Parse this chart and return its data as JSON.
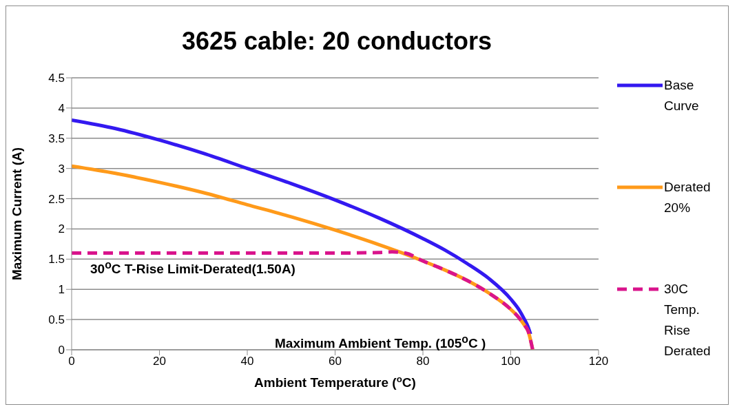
{
  "chart_data": {
    "type": "line",
    "title": "3625 cable: 20 conductors",
    "xlabel": "Ambient Temperature ($^{o}$C)",
    "ylabel": "Maximum Current (A)",
    "xlim": [
      0,
      120
    ],
    "xticks": [
      0,
      20,
      40,
      60,
      80,
      100,
      120
    ],
    "ylim": [
      0,
      4.5
    ],
    "yticks": [
      0,
      0.5,
      1,
      1.5,
      2,
      2.5,
      3,
      3.5,
      4,
      4.5
    ],
    "grid": "y",
    "legend": "right",
    "marker": "none",
    "annotations": [
      "30$^{o}$C T-Rise Limit-Derated(1.50A)",
      "Maximum Ambient Temp. (105$^{o}$C )"
    ],
    "series": [
      {
        "name": "Base Curve",
        "color": "#3319f0",
        "line_style": "solid",
        "x": [
          0,
          10,
          20,
          30,
          40,
          50,
          60,
          70,
          80,
          85,
          90,
          95,
          100,
          102,
          103,
          104,
          104.5
        ],
        "values": [
          3.8,
          3.66,
          3.47,
          3.25,
          3.0,
          2.75,
          2.48,
          2.18,
          1.84,
          1.65,
          1.43,
          1.18,
          0.84,
          0.65,
          0.52,
          0.37,
          0.26
        ]
      },
      {
        "name": "Derated 20%",
        "color": "#ff9a1a",
        "line_style": "solid",
        "x": [
          0,
          10,
          20,
          30,
          40,
          50,
          60,
          70,
          75,
          80,
          85,
          90,
          95,
          100,
          102,
          103,
          104,
          105
        ],
        "values": [
          3.04,
          2.92,
          2.77,
          2.6,
          2.4,
          2.2,
          1.98,
          1.74,
          1.61,
          1.47,
          1.32,
          1.15,
          0.94,
          0.67,
          0.52,
          0.42,
          0.3,
          0
        ]
      },
      {
        "name": "30C Temp. Rise Derated",
        "color": "#d9148c",
        "line_style": "dashed",
        "x": [
          0,
          20,
          40,
          60,
          70,
          73,
          76,
          80,
          85,
          90,
          95,
          100,
          102,
          103,
          104,
          105
        ],
        "values": [
          1.6,
          1.6,
          1.6,
          1.6,
          1.61,
          1.62,
          1.6,
          1.47,
          1.32,
          1.15,
          0.94,
          0.67,
          0.52,
          0.42,
          0.3,
          0
        ]
      }
    ]
  }
}
